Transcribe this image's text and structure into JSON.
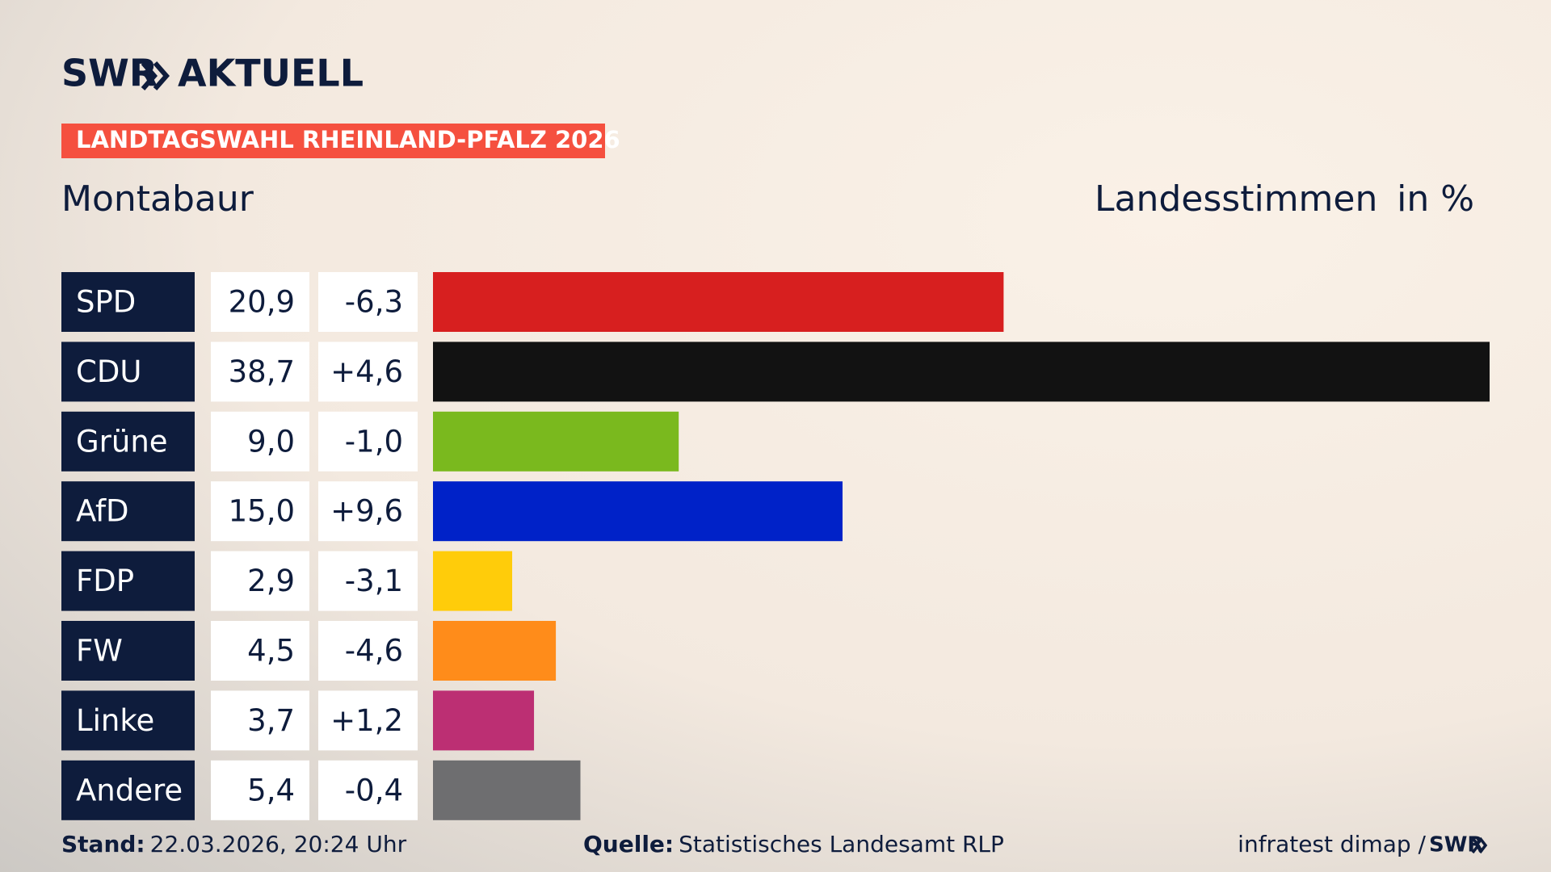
{
  "header": {
    "brand": "SWR",
    "brand_suffix": "AKTUELL",
    "badge": "LANDTAGSWAHL RHEINLAND-PFALZ 2026"
  },
  "chart_data": {
    "type": "bar",
    "orientation": "horizontal",
    "subtitle": "Montabaur",
    "measure": "Landesstimmen",
    "unit_label": "in %",
    "categories": [
      "SPD",
      "CDU",
      "Grüne",
      "AfD",
      "FDP",
      "FW",
      "Linke",
      "Andere"
    ],
    "values": [
      20.9,
      38.7,
      9.0,
      15.0,
      2.9,
      4.5,
      3.7,
      5.4
    ],
    "value_labels": [
      "20,9",
      "38,7",
      "9,0",
      "15,0",
      "2,9",
      "4,5",
      "3,7",
      "5,4"
    ],
    "changes": [
      "-6,3",
      "+4,6",
      "-1,0",
      "+9,6",
      "-3,1",
      "-4,6",
      "+1,2",
      "-0,4"
    ],
    "colors": [
      "#d71f1f",
      "#121212",
      "#7ab91e",
      "#0022c8",
      "#ffcc0a",
      "#ff8c1a",
      "#bc2f73",
      "#6e6e70"
    ]
  },
  "footer": {
    "stand_label": "Stand:",
    "stand": "22.03.2026, 20:24 Uhr",
    "source_label": "Quelle:",
    "source": "Statistisches Landesamt RLP",
    "credit": "infratest dimap /",
    "credit_brand": "SWR"
  }
}
